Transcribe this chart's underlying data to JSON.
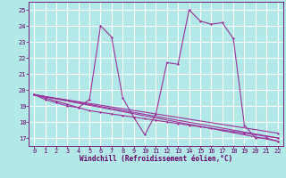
{
  "xlabel": "Windchill (Refroidissement éolien,°C)",
  "xlim": [
    -0.5,
    22.5
  ],
  "ylim": [
    16.5,
    25.5
  ],
  "yticks": [
    17,
    18,
    19,
    20,
    21,
    22,
    23,
    24,
    25
  ],
  "xticks": [
    0,
    1,
    2,
    3,
    4,
    5,
    6,
    7,
    8,
    9,
    10,
    11,
    12,
    13,
    14,
    15,
    16,
    17,
    18,
    19,
    20,
    21,
    22
  ],
  "bg_color": "#b2e8e8",
  "grid_color": "#cccccc",
  "line_color": "#993399",
  "lines": [
    {
      "x": [
        0,
        1,
        2,
        3,
        4,
        5,
        6,
        7,
        8,
        9,
        10,
        11,
        12,
        13,
        14,
        15,
        16,
        17,
        18,
        19,
        20,
        21,
        22
      ],
      "y": [
        19.7,
        19.4,
        19.2,
        19.0,
        18.9,
        19.4,
        24.0,
        23.3,
        19.5,
        18.3,
        17.2,
        18.5,
        21.7,
        21.6,
        25.0,
        24.3,
        24.1,
        24.2,
        23.2,
        17.8,
        17.0,
        17.0,
        16.8
      ]
    },
    {
      "x": [
        0,
        1,
        2,
        3,
        4,
        5,
        6,
        7,
        8,
        9,
        10,
        11,
        12,
        13,
        14,
        15,
        16,
        17,
        18,
        19,
        20,
        21,
        22
      ],
      "y": [
        19.7,
        19.5,
        19.3,
        19.1,
        18.9,
        18.7,
        18.6,
        18.5,
        18.4,
        18.3,
        18.2,
        18.1,
        18.0,
        17.9,
        17.8,
        17.7,
        17.6,
        17.5,
        17.4,
        17.3,
        17.2,
        17.1,
        17.0
      ]
    },
    {
      "x": [
        0,
        22
      ],
      "y": [
        19.7,
        17.3
      ]
    },
    {
      "x": [
        0,
        22
      ],
      "y": [
        19.7,
        17.0
      ]
    },
    {
      "x": [
        0,
        22
      ],
      "y": [
        19.7,
        16.8
      ]
    }
  ]
}
